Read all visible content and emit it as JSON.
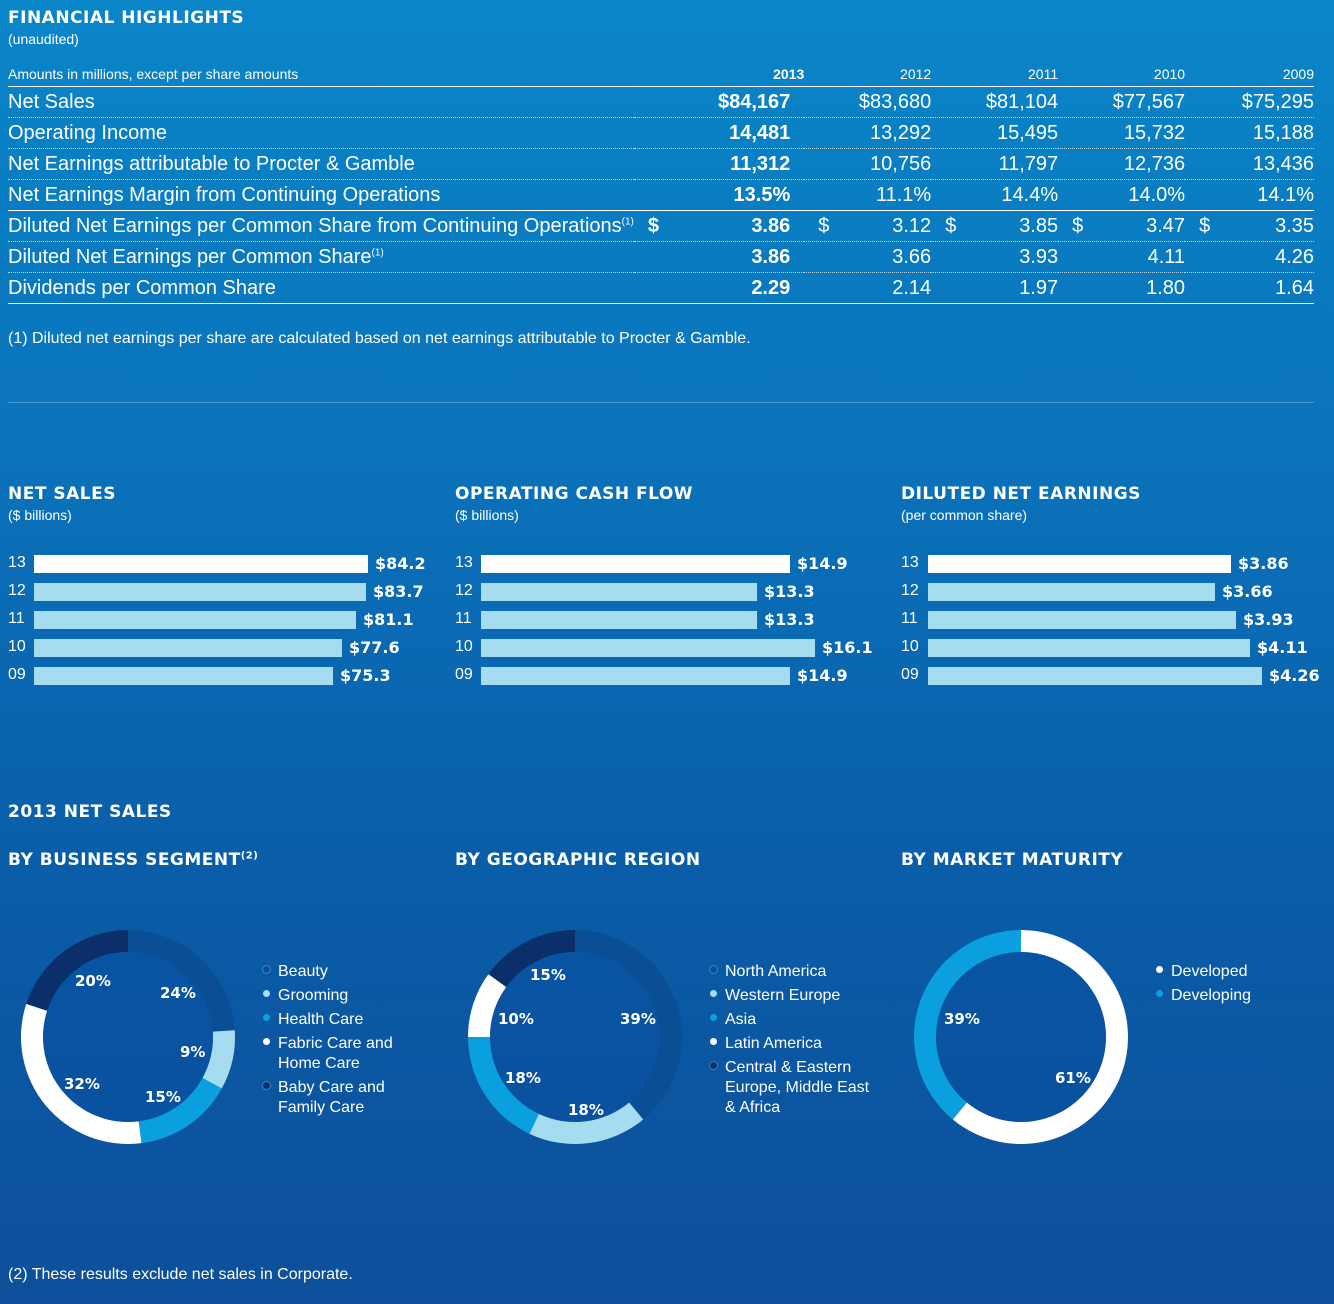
{
  "header": {
    "title": "FINANCIAL HIGHLIGHTS",
    "subtitle": "(unaudited)"
  },
  "table": {
    "label_header": "Amounts in millions, except per share amounts",
    "years": [
      "2013",
      "2012",
      "2011",
      "2010",
      "2009"
    ],
    "rows": [
      {
        "label": "Net Sales",
        "values": [
          "$84,167",
          "$83,680",
          "$81,104",
          "$77,567",
          "$75,295"
        ]
      },
      {
        "label": "Operating Income",
        "values": [
          "14,481",
          "13,292",
          "15,495",
          "15,732",
          "15,188"
        ]
      },
      {
        "label": "Net Earnings attributable to Procter & Gamble",
        "values": [
          "11,312",
          "10,756",
          "11,797",
          "12,736",
          "13,436"
        ]
      },
      {
        "label": "Net Earnings Margin from Continuing Operations",
        "values": [
          "13.5%",
          "11.1%",
          "14.4%",
          "14.0%",
          "14.1%"
        ]
      },
      {
        "label": "Diluted Net Earnings per Common Share from Continuing Operations",
        "sup": "(1)",
        "dollar": "$",
        "values": [
          "3.86",
          "3.12",
          "3.85",
          "3.47",
          "3.35"
        ]
      },
      {
        "label": "Diluted Net Earnings per Common Share",
        "sup": "(1)",
        "values": [
          "3.86",
          "3.66",
          "3.93",
          "4.11",
          "4.26"
        ]
      },
      {
        "label": "Dividends per Common Share",
        "values": [
          "2.29",
          "2.14",
          "1.97",
          "1.80",
          "1.64"
        ]
      }
    ],
    "footnote": "(1) Diluted net earnings per share are calculated based on net earnings attributable to Procter & Gamble."
  },
  "colors": {
    "bar_current": "#ffffff",
    "bar_prior": "#a6dcef",
    "seg_dark": "#0a4f96",
    "seg_light": "#a6dcef",
    "seg_mid": "#0aa0e0",
    "seg_white": "#ffffff",
    "seg_navy": "#0b2f6b"
  },
  "chart_data": [
    {
      "type": "bar",
      "title": "NET SALES",
      "subtitle": "($ billions)",
      "categories": [
        "13",
        "12",
        "11",
        "10",
        "09"
      ],
      "values": [
        84.2,
        83.7,
        81.1,
        77.6,
        75.3
      ],
      "labels": [
        "$84.2",
        "$83.7",
        "$81.1",
        "$77.6",
        "$75.3"
      ]
    },
    {
      "type": "bar",
      "title": "OPERATING CASH FLOW",
      "subtitle": "($ billions)",
      "categories": [
        "13",
        "12",
        "11",
        "10",
        "09"
      ],
      "values": [
        14.9,
        13.3,
        13.3,
        16.1,
        14.9
      ],
      "labels": [
        "$14.9",
        "$13.3",
        "$13.3",
        "$16.1",
        "$14.9"
      ]
    },
    {
      "type": "bar",
      "title": "DILUTED NET EARNINGS",
      "subtitle": "(per common share)",
      "categories": [
        "13",
        "12",
        "11",
        "10",
        "09"
      ],
      "values": [
        3.86,
        3.66,
        3.93,
        4.11,
        4.26
      ],
      "labels": [
        "$3.86",
        "$3.66",
        "$3.93",
        "$4.11",
        "$4.26"
      ]
    },
    {
      "type": "pie",
      "title": "BY BUSINESS SEGMENT",
      "title_sup": "(2)",
      "slices": [
        {
          "name": "Beauty",
          "value": 24,
          "label": "24%"
        },
        {
          "name": "Grooming",
          "value": 9,
          "label": "9%"
        },
        {
          "name": "Health Care",
          "value": 15,
          "label": "15%"
        },
        {
          "name": "Fabric Care and Home Care",
          "value": 32,
          "label": "32%"
        },
        {
          "name": "Baby Care and Family Care",
          "value": 20,
          "label": "20%"
        }
      ],
      "legend_lines": [
        [
          "Beauty"
        ],
        [
          "Grooming"
        ],
        [
          "Health Care"
        ],
        [
          "Fabric Care and",
          "Home Care"
        ],
        [
          "Baby Care and",
          "Family Care"
        ]
      ]
    },
    {
      "type": "pie",
      "title": "BY GEOGRAPHIC REGION",
      "slices": [
        {
          "name": "North America",
          "value": 39,
          "label": "39%"
        },
        {
          "name": "Western Europe",
          "value": 18,
          "label": "18%"
        },
        {
          "name": "Asia",
          "value": 18,
          "label": "18%"
        },
        {
          "name": "Latin America",
          "value": 10,
          "label": "10%"
        },
        {
          "name": "Central & Eastern Europe, Middle East & Africa",
          "value": 15,
          "label": "15%"
        }
      ],
      "legend_lines": [
        [
          "North America"
        ],
        [
          "Western Europe"
        ],
        [
          "Asia"
        ],
        [
          "Latin America"
        ],
        [
          "Central & Eastern",
          "Europe, Middle East",
          "& Africa"
        ]
      ]
    },
    {
      "type": "pie",
      "title": "BY MARKET MATURITY",
      "slices": [
        {
          "name": "Developed",
          "value": 61,
          "label": "61%"
        },
        {
          "name": "Developing",
          "value": 39,
          "label": "39%"
        }
      ],
      "legend_lines": [
        [
          "Developed"
        ],
        [
          "Developing"
        ]
      ]
    }
  ],
  "section2": {
    "title": "2013 NET SALES",
    "footnote": "(2) These results exclude net sales in Corporate."
  }
}
